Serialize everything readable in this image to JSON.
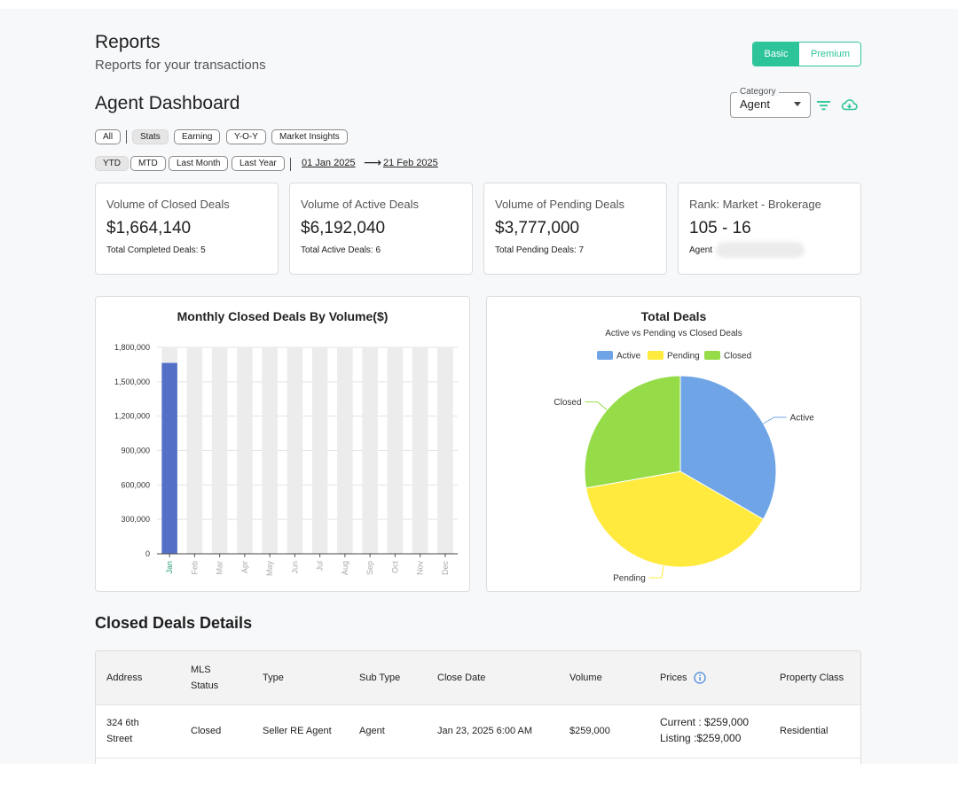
{
  "header": {
    "title": "Reports",
    "subtitle": "Reports for your transactions"
  },
  "plan_toggle": {
    "basic": "Basic",
    "premium": "Premium",
    "selected": "Basic"
  },
  "dashboard": {
    "title": "Agent Dashboard"
  },
  "category": {
    "legend": "Category",
    "value": "Agent"
  },
  "icons": {
    "filter": "filter-icon",
    "download": "cloud-download-icon",
    "info": "info-icon"
  },
  "colors": {
    "accent": "#2ec49a",
    "bar": "#5470c6",
    "active": "#6fa5e6",
    "pending": "#ffea3d",
    "closed": "#95dc48"
  },
  "view_chips": [
    {
      "label": "All",
      "active": false
    },
    {
      "label": "Stats",
      "active": true
    },
    {
      "label": "Earning",
      "active": false
    },
    {
      "label": "Y-O-Y",
      "active": false
    },
    {
      "label": "Market Insights",
      "active": false
    }
  ],
  "period_chips": [
    {
      "label": "YTD",
      "active": true
    },
    {
      "label": "MTD",
      "active": false
    },
    {
      "label": "Last Month",
      "active": false
    },
    {
      "label": "Last Year",
      "active": false
    }
  ],
  "date_range": {
    "start": "01 Jan 2025",
    "end": "21 Feb 2025"
  },
  "cards": [
    {
      "label": "Volume of Closed Deals",
      "value": "$1,664,140",
      "sub": "Total Completed Deals: 5"
    },
    {
      "label": "Volume of Active Deals",
      "value": "$6,192,040",
      "sub": "Total Active Deals: 6"
    },
    {
      "label": "Volume of Pending Deals",
      "value": "$3,777,000",
      "sub": "Total Pending Deals: 7"
    },
    {
      "label": "Rank: Market - Brokerage",
      "value": "105 - 16",
      "sub": "Agent"
    }
  ],
  "chart_data": [
    {
      "type": "bar",
      "title": "Monthly Closed Deals By Volume($)",
      "categories": [
        "Jan",
        "Feb",
        "Mar",
        "Apr",
        "May",
        "Jun",
        "Jul",
        "Aug",
        "Sep",
        "Oct",
        "Nov",
        "Dec"
      ],
      "values": [
        1664140,
        0,
        0,
        0,
        0,
        0,
        0,
        0,
        0,
        0,
        0,
        0
      ],
      "y_ticks": [
        "0",
        "300,000",
        "600,000",
        "900,000",
        "1,200,000",
        "1,500,000",
        "1,800,000"
      ],
      "ylim": [
        0,
        1800000
      ],
      "grid": true
    },
    {
      "type": "pie",
      "title": "Total Deals",
      "subtitle": "Active vs Pending vs Closed Deals",
      "legend_position": "top",
      "slices": [
        {
          "label": "Active",
          "value": 6
        },
        {
          "label": "Pending",
          "value": 7
        },
        {
          "label": "Closed",
          "value": 5
        }
      ]
    }
  ],
  "closed_deals": {
    "title": "Closed Deals Details",
    "columns": [
      "Address",
      "MLS Status",
      "Type",
      "Sub Type",
      "Close Date",
      "Volume",
      "Prices",
      "Property Class"
    ],
    "rows": [
      {
        "address": "324 6th Street",
        "mls_status": "Closed",
        "type": "Seller RE Agent",
        "sub_type": "Agent",
        "close_date": "Jan 23, 2025 6:00 AM",
        "volume": "$259,000",
        "price_current": "Current : $259,000",
        "price_listing": "Listing :$259,000",
        "property_class": "Residential"
      }
    ]
  }
}
